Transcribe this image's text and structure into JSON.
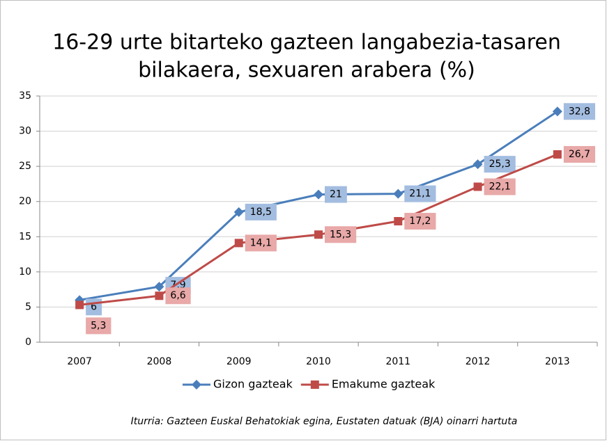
{
  "chart_data": {
    "type": "line",
    "title": [
      "16-29 urte bitarteko gazteen langabezia-tasaren",
      "bilakaera, sexuaren arabera (%)"
    ],
    "categories": [
      "2007",
      "2008",
      "2009",
      "2010",
      "2011",
      "2012",
      "2013"
    ],
    "series": [
      {
        "name": "Gizon gazteak",
        "color": "#4a7ebb",
        "marker": "diamond",
        "label_color": "#a3bde0",
        "values": [
          6,
          7.9,
          18.5,
          21,
          21.1,
          25.3,
          32.8
        ],
        "value_labels": [
          "6",
          "7,9",
          "18,5",
          "21",
          "21,1",
          "25,3",
          "32,8"
        ]
      },
      {
        "name": "Emakume gazteak",
        "color": "#be4b48",
        "marker": "square",
        "label_color": "#e8a9a8",
        "values": [
          5.3,
          6.6,
          14.1,
          15.3,
          17.2,
          22.1,
          26.7
        ],
        "value_labels": [
          "5,3",
          "6,6",
          "14,1",
          "15,3",
          "17,2",
          "22,1",
          "26,7"
        ]
      }
    ],
    "ylim": [
      0,
      35
    ],
    "yticks": [
      0,
      5,
      10,
      15,
      20,
      25,
      30,
      35
    ],
    "grid": true,
    "legend": "bottom",
    "source": "Iturria: Gazteen  Euskal Behatokiak egina, Eustaten datuak (BJA) oinarri hartuta"
  }
}
